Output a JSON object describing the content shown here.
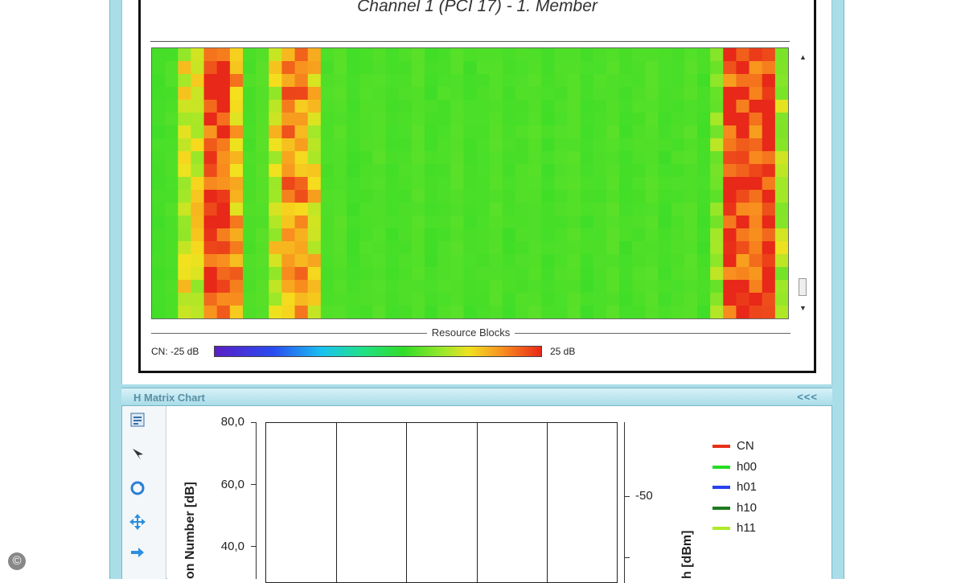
{
  "heatmap_panel": {
    "title": "Channel 1 (PCI 17) - 1. Member",
    "x_axis_title": "Resource Blocks",
    "colorbar": {
      "label_min": "CN: -25 dB",
      "label_max": "25 dB"
    }
  },
  "lower_panel": {
    "header_title": "H Matrix Chart",
    "collapse_label": "<<<",
    "toolbar_icons": [
      "properties-icon",
      "cursor-icon",
      "refresh-icon",
      "move-icon",
      "pan-arrow-icon"
    ]
  },
  "chart_data": {
    "type": "line",
    "ylabel": "on Number [dB]",
    "y2label": "h [dBm]",
    "y_ticks": [
      "80,0",
      "60,0",
      "40,0"
    ],
    "y2_ticks": [
      "-50"
    ],
    "series": [
      {
        "name": "CN",
        "color": "#e83018",
        "values": []
      },
      {
        "name": "h00",
        "color": "#27dd26",
        "values": []
      },
      {
        "name": "h01",
        "color": "#2741ee",
        "values": []
      },
      {
        "name": "h10",
        "color": "#1d7a1d",
        "values": []
      },
      {
        "name": "h11",
        "color": "#aeea2a",
        "values": []
      }
    ]
  },
  "colors": {
    "frame": "#a9dde8",
    "header_text": "#5b8fa3"
  },
  "copyright_symbol": "©"
}
